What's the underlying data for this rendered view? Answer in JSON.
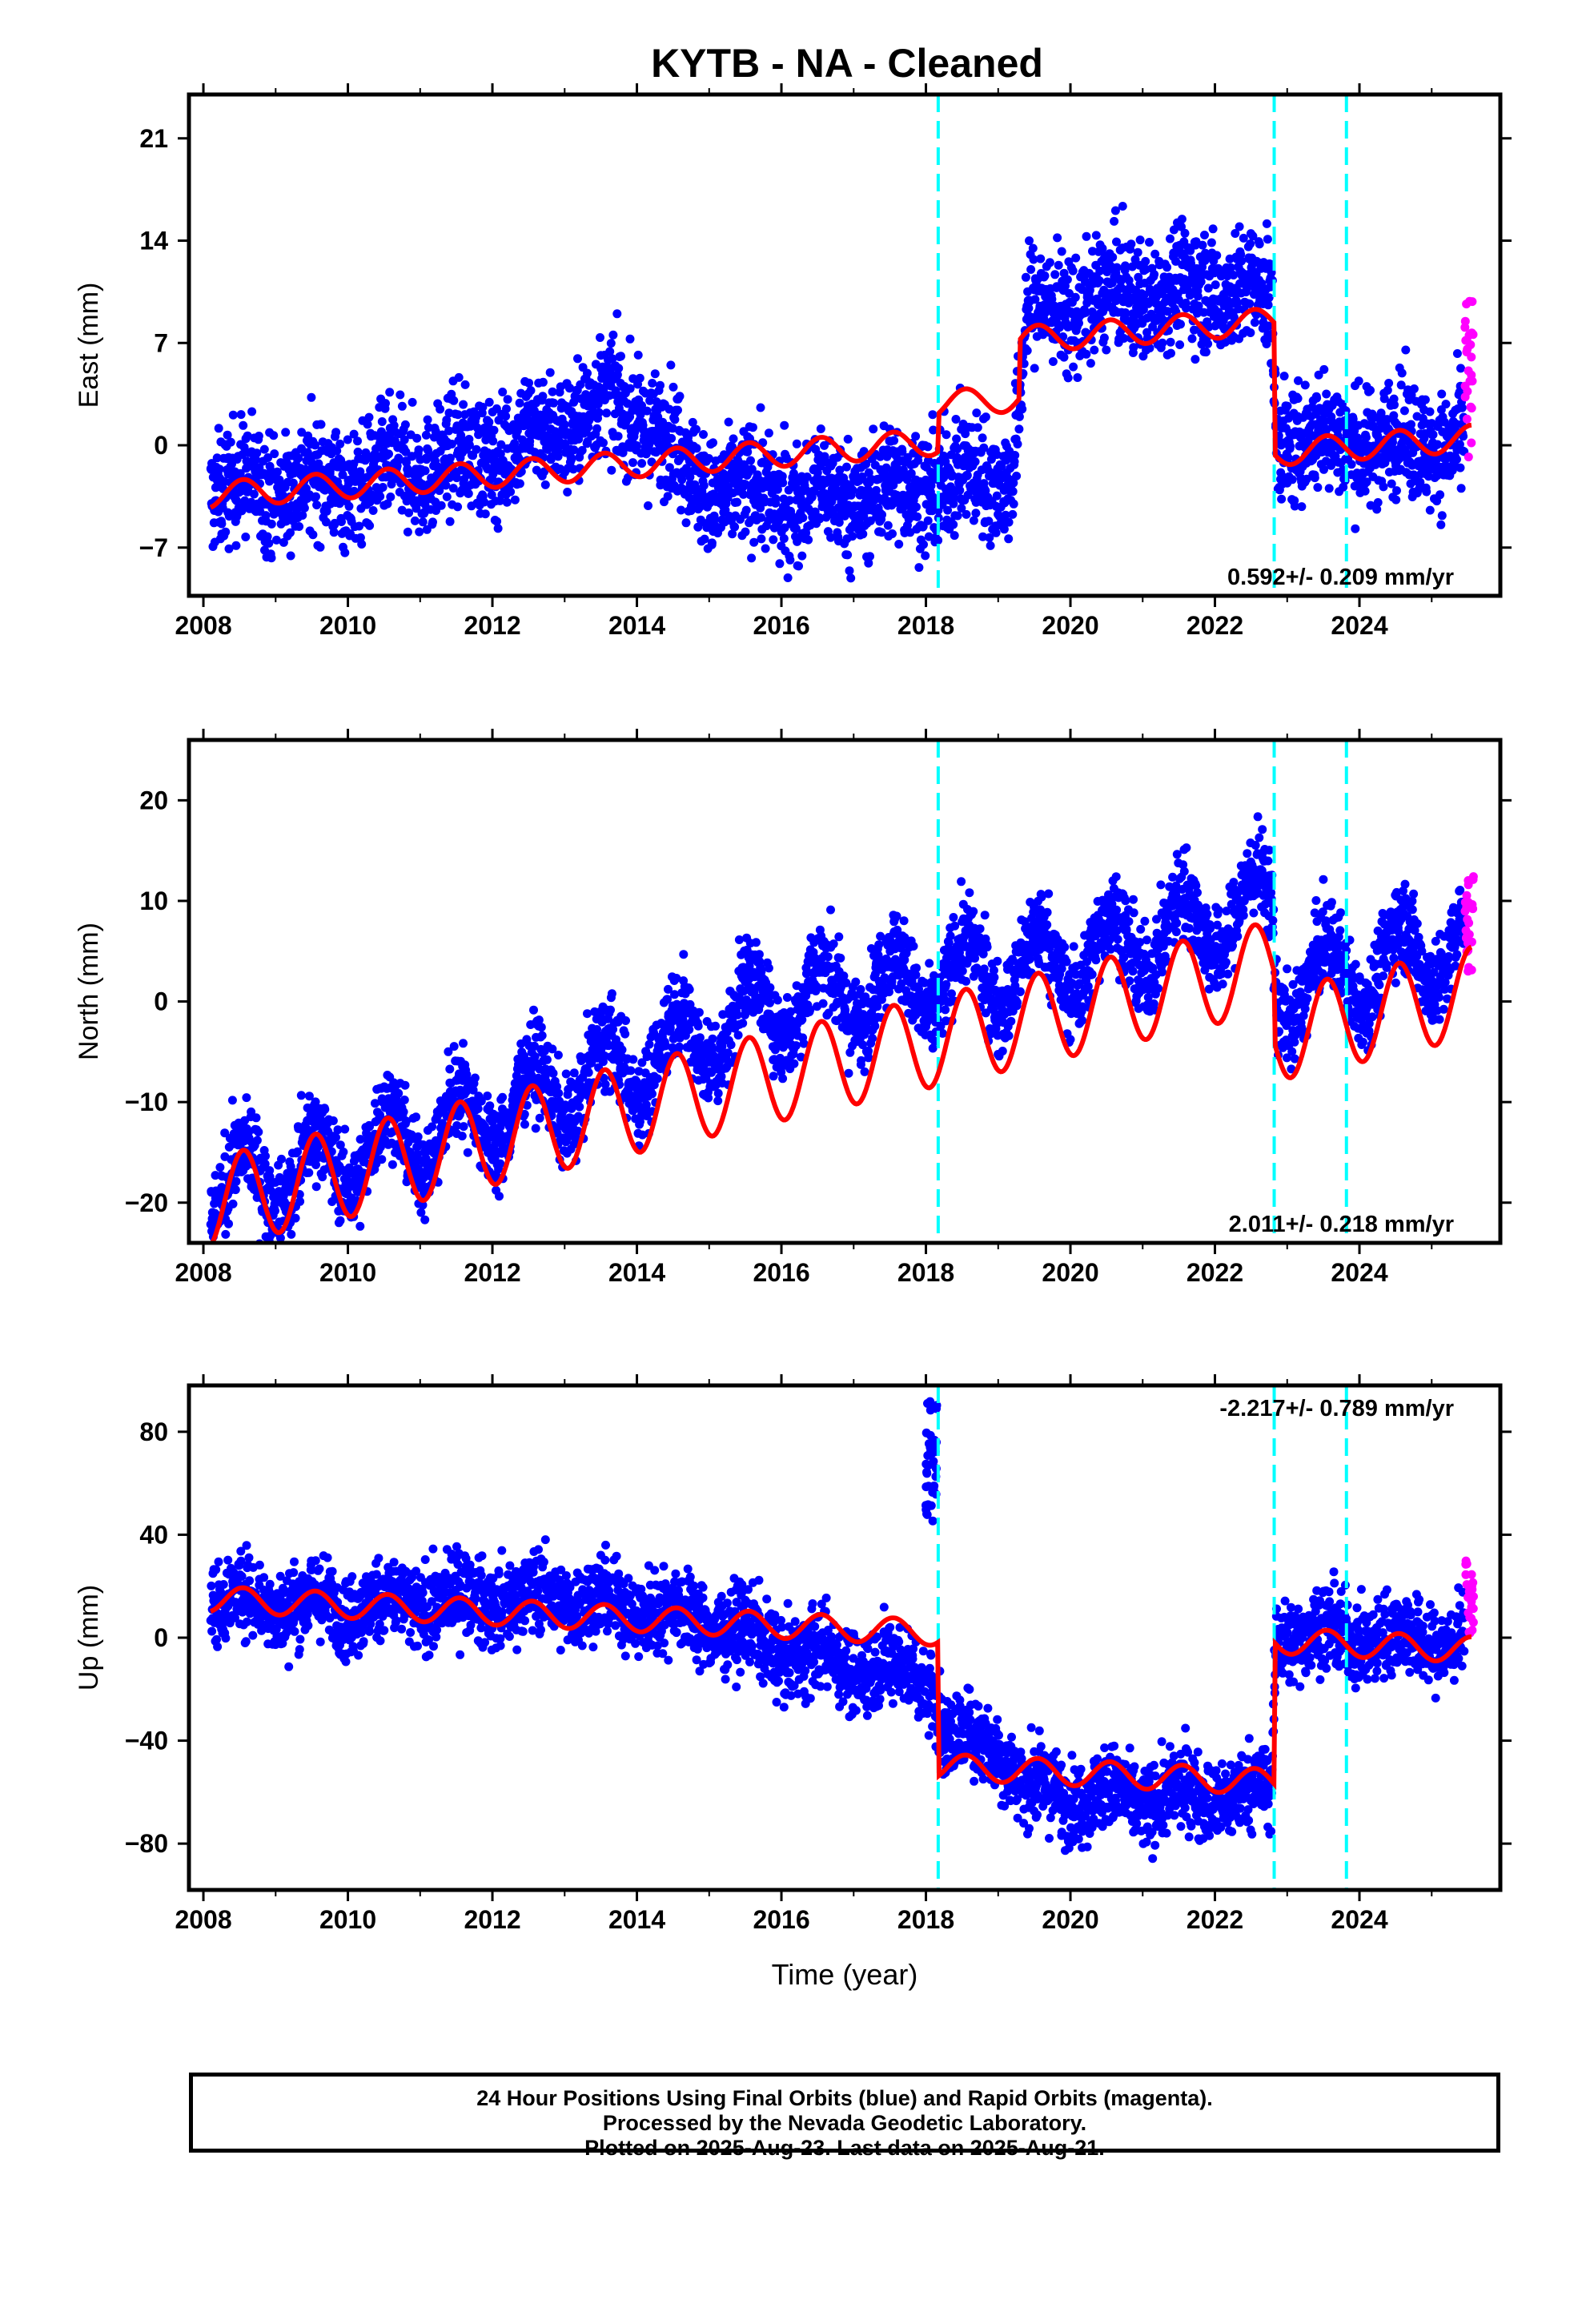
{
  "title": "KYTB  - NA - Cleaned",
  "colors": {
    "final_orbits": "#0000ff",
    "rapid_orbits": "#ff00ff",
    "model_fit": "#ff0000",
    "event_lines": "#00ffff",
    "frame": "#000000"
  },
  "chart_data": [
    {
      "type": "scatter",
      "panel": "east",
      "ylabel": "East (mm)",
      "xlim": [
        2007.8,
        2025.95
      ],
      "ylim": [
        -10.3,
        24.0
      ],
      "x_ticks": [
        2008,
        2010,
        2012,
        2014,
        2016,
        2018,
        2020,
        2022,
        2024
      ],
      "y_ticks": [
        -7,
        0,
        7,
        14,
        21
      ],
      "rate_label": "0.592+/- 0.209 mm/yr",
      "rate_label_position": "bottom-right",
      "events": [
        2018.17,
        2022.82,
        2023.82
      ],
      "model_fit": {
        "name": "model",
        "offset": -3.4,
        "trend": 0.36,
        "annual_amplitude": 0.9,
        "steps": [
          {
            "at": 2018.17,
            "size": 2.6
          },
          {
            "at": 2019.3,
            "size": 4.0
          },
          {
            "at": 2022.82,
            "size": -9.0
          }
        ],
        "start": 2008.1,
        "end": 2025.55
      },
      "final_series": {
        "x_range": [
          2008.1,
          2025.45
        ],
        "approx_mean": [
          [
            2008.1,
            -3.0
          ],
          [
            2010.0,
            -2.5
          ],
          [
            2012.0,
            -0.5
          ],
          [
            2013.7,
            3.0
          ],
          [
            2014.4,
            0.5
          ],
          [
            2015.0,
            -3.0
          ],
          [
            2016.0,
            -3.5
          ],
          [
            2017.0,
            -3.5
          ],
          [
            2018.2,
            -2.5
          ],
          [
            2019.2,
            -2.0
          ],
          [
            2019.4,
            9.0
          ],
          [
            2020.5,
            10.0
          ],
          [
            2022.0,
            11.0
          ],
          [
            2022.78,
            10.0
          ],
          [
            2022.85,
            0.5
          ],
          [
            2025.45,
            0.0
          ]
        ],
        "scatter_std": 2.0
      },
      "rapid_series": {
        "x_range": [
          2025.46,
          2025.58
        ],
        "y_range": [
          -1.0,
          10.0
        ]
      }
    },
    {
      "type": "scatter",
      "panel": "north",
      "ylabel": "North (mm)",
      "xlim": [
        2007.8,
        2025.95
      ],
      "ylim": [
        -24.0,
        26.0
      ],
      "x_ticks": [
        2008,
        2010,
        2012,
        2014,
        2016,
        2018,
        2020,
        2022,
        2024
      ],
      "y_ticks": [
        -20,
        -10,
        0,
        10,
        20
      ],
      "rate_label": "2.011+/- 0.218 mm/yr",
      "rate_label_position": "bottom-right",
      "events": [
        2018.17,
        2022.82,
        2023.82
      ],
      "model_fit": {
        "name": "model",
        "offset": -20.0,
        "trend": 1.6,
        "annual_amplitude": 4.5,
        "steps": [
          {
            "at": 2022.82,
            "size": -7.0
          }
        ],
        "start": 2008.1,
        "end": 2025.55
      },
      "final_series": {
        "x_range": [
          2008.1,
          2025.45
        ],
        "approx_mean": [
          [
            2008.1,
            -19.0
          ],
          [
            2010.0,
            -15.5
          ],
          [
            2012.0,
            -11.0
          ],
          [
            2014.0,
            -6.0
          ],
          [
            2016.0,
            0.0
          ],
          [
            2018.0,
            2.0
          ],
          [
            2020.0,
            4.0
          ],
          [
            2022.0,
            8.0
          ],
          [
            2022.78,
            10.0
          ],
          [
            2022.85,
            1.0
          ],
          [
            2025.45,
            6.0
          ]
        ],
        "scatter_std": 2.2
      },
      "rapid_series": {
        "x_range": [
          2025.46,
          2025.58
        ],
        "y_range": [
          3.0,
          13.0
        ]
      }
    },
    {
      "type": "scatter",
      "panel": "up",
      "ylabel": "Up (mm)",
      "xlabel": "Time (year)",
      "xlim": [
        2007.8,
        2025.95
      ],
      "ylim": [
        -98.0,
        98.0
      ],
      "x_ticks": [
        2008,
        2010,
        2012,
        2014,
        2016,
        2018,
        2020,
        2022,
        2024
      ],
      "y_ticks": [
        -80,
        -40,
        0,
        40,
        80
      ],
      "rate_label": "-2.217+/- 0.789 mm/yr",
      "rate_label_position": "top-right",
      "events": [
        2018.17,
        2022.82,
        2023.82
      ],
      "model_fit": {
        "name": "model",
        "offset": 15.0,
        "trend": -1.3,
        "annual_amplitude": 5.0,
        "steps": [
          {
            "at": 2018.17,
            "size": -52.0
          },
          {
            "at": 2022.82,
            "size": 55.0
          }
        ],
        "start": 2008.1,
        "end": 2025.55
      },
      "final_series": {
        "x_range": [
          2008.1,
          2025.45
        ],
        "approx_mean": [
          [
            2008.1,
            15.0
          ],
          [
            2010.0,
            12.0
          ],
          [
            2012.0,
            15.0
          ],
          [
            2013.0,
            15.0
          ],
          [
            2014.5,
            10.0
          ],
          [
            2015.2,
            5.0
          ],
          [
            2016.0,
            -5.0
          ],
          [
            2017.0,
            -10.0
          ],
          [
            2018.1,
            -15.0
          ],
          [
            2018.25,
            -40.0
          ],
          [
            2019.0,
            -40.0
          ],
          [
            2019.4,
            -60.0
          ],
          [
            2021.0,
            -62.0
          ],
          [
            2022.78,
            -60.0
          ],
          [
            2022.85,
            2.0
          ],
          [
            2025.45,
            -2.0
          ]
        ],
        "scatter_std": 8.0,
        "spike": {
          "x_range": [
            2018.0,
            2018.15
          ],
          "y_range": [
            45.0,
            92.0
          ]
        }
      },
      "rapid_series": {
        "x_range": [
          2025.46,
          2025.58
        ],
        "y_range": [
          0.0,
          30.0
        ]
      }
    }
  ],
  "footer": {
    "line1": "24 Hour Positions Using Final Orbits (blue) and Rapid Orbits (magenta).",
    "line2": "Processed by the Nevada Geodetic Laboratory.",
    "line3": "Plotted on 2025-Aug-23. Last data on 2025-Aug-21."
  }
}
